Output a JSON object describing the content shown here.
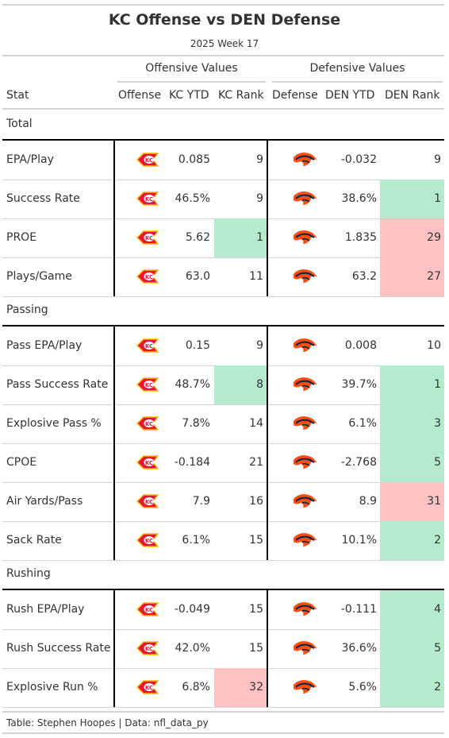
{
  "table": {
    "title": "KC Offense vs DEN Defense",
    "subtitle": "2025 Week 17",
    "spanners": {
      "offense": "Offensive Values",
      "defense": "Defensive Values"
    },
    "columns": {
      "stat": "Stat",
      "offense": "Offense",
      "kc_ytd": "KC YTD",
      "kc_rank": "KC Rank",
      "defense": "Defense",
      "den_ytd": "DEN YTD",
      "den_rank": "DEN Rank"
    },
    "groups": [
      {
        "label": "Total",
        "rows": [
          {
            "stat": "EPA/Play",
            "kc_ytd": "0.085",
            "kc_rank": "9",
            "den_ytd": "-0.032",
            "den_rank": "9"
          },
          {
            "stat": "Success Rate",
            "kc_ytd": "46.5%",
            "kc_rank": "9",
            "den_ytd": "38.6%",
            "den_rank": "1"
          },
          {
            "stat": "PROE",
            "kc_ytd": "5.62",
            "kc_rank": "1",
            "den_ytd": "1.835",
            "den_rank": "29"
          },
          {
            "stat": "Plays/Game",
            "kc_ytd": "63.0",
            "kc_rank": "11",
            "den_ytd": "63.2",
            "den_rank": "27"
          }
        ]
      },
      {
        "label": "Passing",
        "rows": [
          {
            "stat": "Pass EPA/Play",
            "kc_ytd": "0.15",
            "kc_rank": "9",
            "den_ytd": "0.008",
            "den_rank": "10"
          },
          {
            "stat": "Pass Success Rate",
            "kc_ytd": "48.7%",
            "kc_rank": "8",
            "den_ytd": "39.7%",
            "den_rank": "1"
          },
          {
            "stat": "Explosive Pass %",
            "kc_ytd": "7.8%",
            "kc_rank": "14",
            "den_ytd": "6.1%",
            "den_rank": "3"
          },
          {
            "stat": "CPOE",
            "kc_ytd": "-0.184",
            "kc_rank": "21",
            "den_ytd": "-2.768",
            "den_rank": "5"
          },
          {
            "stat": "Air Yards/Pass",
            "kc_ytd": "7.9",
            "kc_rank": "16",
            "den_ytd": "8.9",
            "den_rank": "31"
          },
          {
            "stat": "Sack Rate",
            "kc_ytd": "6.1%",
            "kc_rank": "15",
            "den_ytd": "10.1%",
            "den_rank": "2"
          }
        ]
      },
      {
        "label": "Rushing",
        "rows": [
          {
            "stat": "Rush EPA/Play",
            "kc_ytd": "-0.049",
            "kc_rank": "15",
            "den_ytd": "-0.111",
            "den_rank": "4"
          },
          {
            "stat": "Rush Success Rate",
            "kc_ytd": "42.0%",
            "kc_rank": "15",
            "den_ytd": "36.6%",
            "den_rank": "5"
          },
          {
            "stat": "Explosive Run %",
            "kc_ytd": "6.8%",
            "kc_rank": "32",
            "den_ytd": "5.6%",
            "den_rank": "2"
          }
        ]
      }
    ],
    "offense_logo": "kc-chiefs-arrowhead-icon",
    "defense_logo": "den-broncos-horse-head-icon",
    "highlight_colors": {
      "good_rank": "#b3ebcc",
      "bad_rank": "#ffc2c2"
    },
    "footer": "Table: Stephen Hoopes | Data: nfl_data_py"
  }
}
